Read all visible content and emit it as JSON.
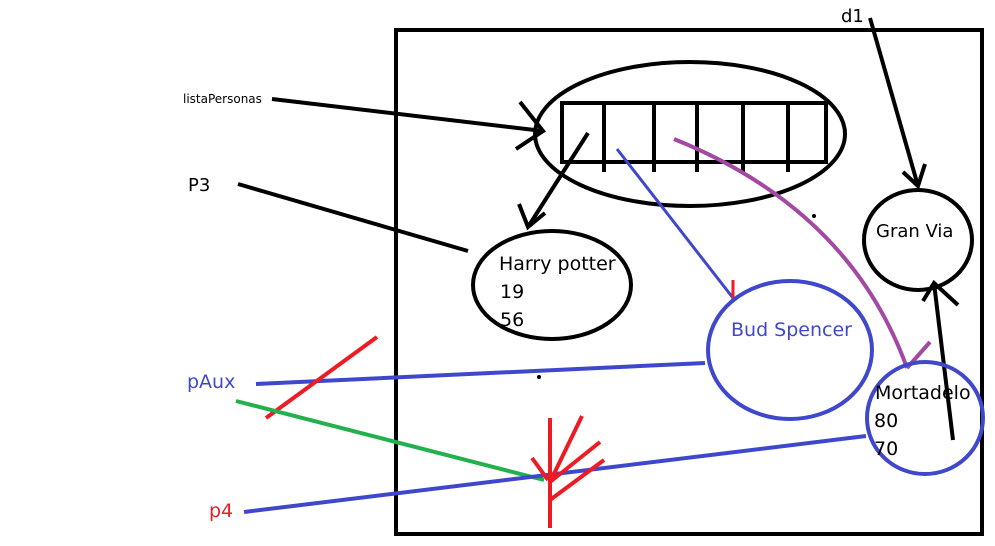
{
  "labels": {
    "lista_personas": "listaPersonas",
    "p3": "P3",
    "paux": "pAux",
    "p4": "p4",
    "d1": "d1"
  },
  "nodes": {
    "harry": {
      "name": "Harry potter",
      "v1": "19",
      "v2": "56"
    },
    "bud": {
      "name": "Bud Spencer"
    },
    "mortadelo": {
      "name": "Mortadelo",
      "v1": "80",
      "v2": "70"
    },
    "granvia": {
      "name": "Gran Via"
    }
  },
  "colors": {
    "black": "#000000",
    "blue": "#3f48cc",
    "red": "#ed1c24",
    "green": "#22b14c",
    "purple": "#a349a4"
  }
}
